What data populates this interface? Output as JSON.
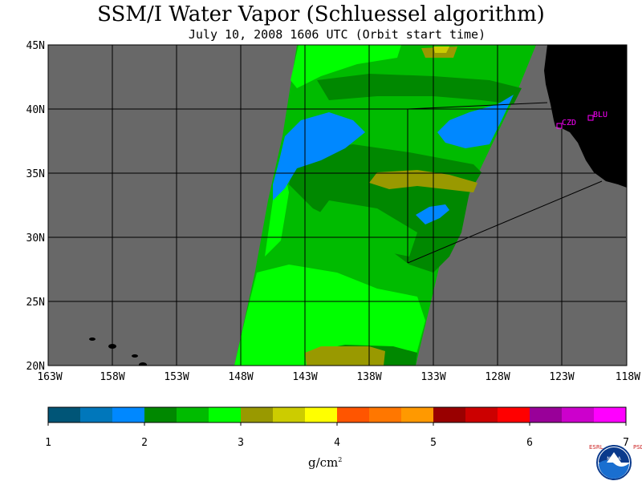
{
  "header": {
    "title": "SSM/I Water Vapor (Schluessel algorithm)",
    "subtitle": "July 10, 2008  1606 UTC  (Orbit start time)"
  },
  "map": {
    "lon_labels": [
      "163W",
      "158W",
      "153W",
      "148W",
      "143W",
      "138W",
      "133W",
      "128W",
      "123W",
      "118W"
    ],
    "lat_labels": [
      "45N",
      "40N",
      "35N",
      "30N",
      "25N",
      "20N"
    ],
    "land_color": "#000000",
    "no_data_color": "#686868",
    "grid_color": "#000000",
    "stations": [
      {
        "name": "CZD",
        "marker_color": "#ff00ff"
      },
      {
        "name": "BLU",
        "marker_color": "#ff00ff"
      }
    ]
  },
  "colorbar": {
    "tick_labels": [
      "1",
      "2",
      "3",
      "4",
      "5",
      "6",
      "7"
    ],
    "unit": "g/cm",
    "unit_exponent": "2",
    "colors": [
      "#005577",
      "#0077bb",
      "#0088ff",
      "#008800",
      "#00bb00",
      "#00ff00",
      "#999900",
      "#cccc00",
      "#ffff00",
      "#ff5500",
      "#ff7700",
      "#ff9900",
      "#990000",
      "#cc0000",
      "#ff0000",
      "#990099",
      "#cc00cc",
      "#ff00ff"
    ]
  },
  "logo": {
    "left_text": "ESRL",
    "center_text": "NOAA",
    "right_text": "PSD"
  }
}
